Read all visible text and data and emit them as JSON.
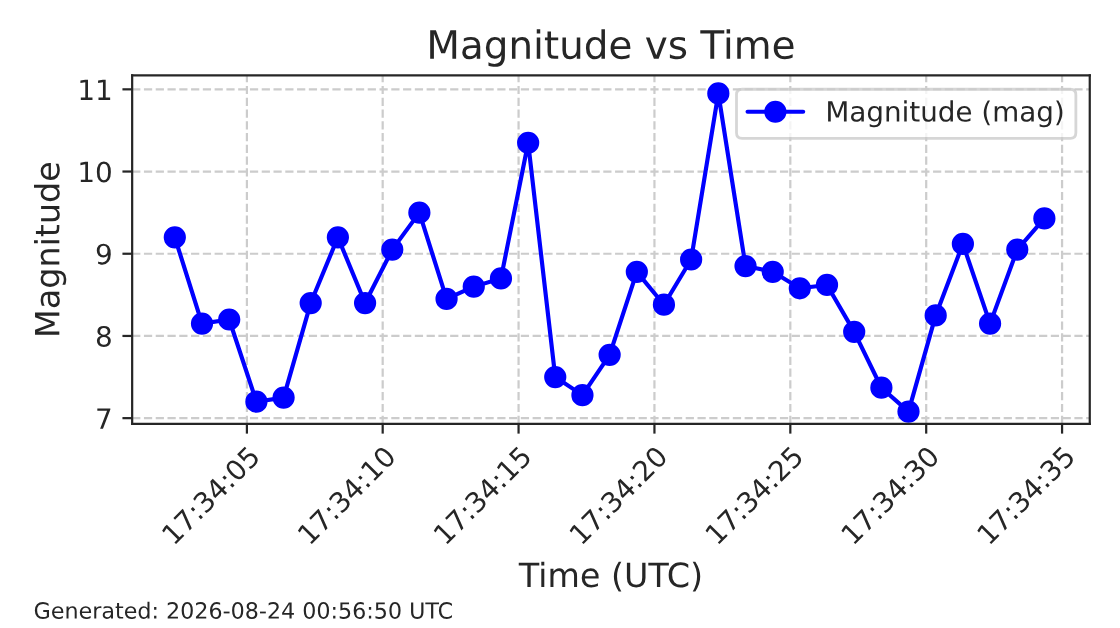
{
  "chart_data": {
    "type": "line",
    "title": "Magnitude vs Time",
    "xlabel": "Time (UTC)",
    "ylabel": "Magnitude",
    "x": [
      17.567319,
      17.567597,
      17.567875,
      17.568153,
      17.568431,
      17.568708,
      17.568986,
      17.569264,
      17.569542,
      17.569819,
      17.570097,
      17.570375,
      17.570653,
      17.570931,
      17.571208,
      17.571486,
      17.571764,
      17.572042,
      17.572319,
      17.572597,
      17.572875,
      17.573153,
      17.573431,
      17.573708,
      17.573986,
      17.574264,
      17.574542,
      17.574819,
      17.575097,
      17.575375,
      17.575653,
      17.575931,
      17.576208
    ],
    "series": [
      {
        "name": "Magnitude (mag)",
        "color": "#0000ff",
        "values": [
          9.2,
          8.15,
          8.2,
          7.2,
          7.25,
          8.4,
          9.2,
          8.4,
          9.05,
          9.5,
          8.45,
          8.6,
          8.7,
          10.35,
          7.5,
          7.28,
          7.77,
          8.78,
          8.38,
          8.93,
          10.95,
          8.85,
          8.78,
          8.58,
          8.62,
          8.05,
          7.37,
          7.08,
          8.25,
          9.12,
          8.15,
          9.05,
          9.43
        ]
      }
    ],
    "xlim": [
      17.566883,
      17.576672
    ],
    "xticks": [
      {
        "value": 17.568056,
        "label": "17:34:05"
      },
      {
        "value": 17.569444,
        "label": "17:34:10"
      },
      {
        "value": 17.570833,
        "label": "17:34:15"
      },
      {
        "value": 17.572222,
        "label": "17:34:20"
      },
      {
        "value": 17.573611,
        "label": "17:34:25"
      },
      {
        "value": 17.575,
        "label": "17:34:30"
      },
      {
        "value": 17.576389,
        "label": "17:34:35"
      }
    ],
    "ylim": [
      6.93,
      11.17
    ],
    "yticks": [
      7,
      8,
      9,
      10,
      11
    ],
    "grid": true,
    "legend": "top right",
    "marker": "circle",
    "line_style": "solid",
    "annotations": [
      "Generated: 2026-08-24 00:56:50 UTC"
    ]
  }
}
